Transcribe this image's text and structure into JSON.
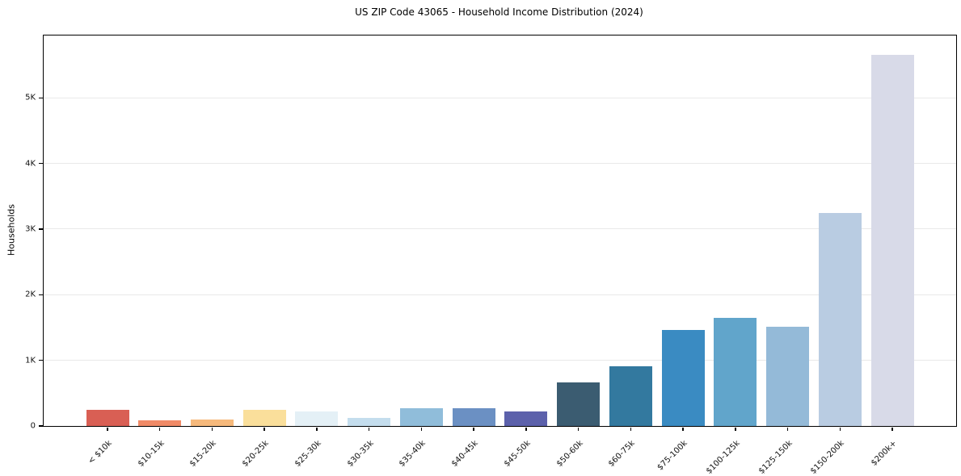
{
  "chart_data": {
    "type": "bar",
    "title": "US ZIP Code 43065 - Household Income Distribution (2024)",
    "xlabel": "",
    "ylabel": "Households",
    "categories": [
      "< $10k",
      "$10-15k",
      "$15-20k",
      "$20-25k",
      "$25-30k",
      "$30-35k",
      "$35-40k",
      "$40-45k",
      "$45-50k",
      "$50-60k",
      "$60-75k",
      "$75-100k",
      "$100-125k",
      "$125-150k",
      "$150-200k",
      "$200k+"
    ],
    "values": [
      245,
      90,
      100,
      250,
      225,
      120,
      265,
      270,
      225,
      670,
      910,
      1460,
      1650,
      1510,
      3250,
      5660
    ],
    "bar_colors": [
      "#d95f54",
      "#f08a67",
      "#f6b97c",
      "#fadf9b",
      "#e4f0f6",
      "#c4dded",
      "#90bdda",
      "#6b90c3",
      "#5c61ab",
      "#3b5c71",
      "#33799f",
      "#3a8bc2",
      "#61a5cb",
      "#94bad8",
      "#b9cce2",
      "#d8dae8"
    ],
    "ylim": [
      0,
      5950
    ],
    "ytick_values": [
      0,
      1000,
      2000,
      3000,
      4000,
      5000
    ],
    "ytick_labels": [
      "0",
      "1K",
      "2K",
      "3K",
      "4K",
      "5K"
    ],
    "grid": "horizontal",
    "gridline_color": "#e9e9e9",
    "background": "#ffffff",
    "legend": "none",
    "x_tick_label_rotation_deg": 45
  }
}
